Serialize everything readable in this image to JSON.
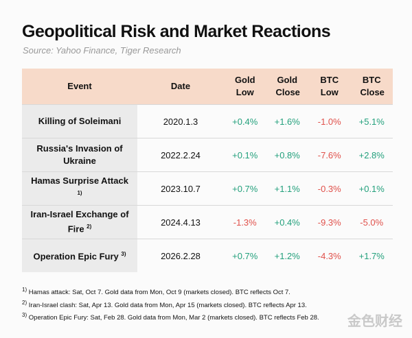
{
  "header": {
    "title": "Geopolitical Risk and Market Reactions",
    "source": "Source: Yahoo Finance, Tiger Research"
  },
  "table": {
    "columns": [
      "Event",
      "Date",
      "Gold Low",
      "Gold Close",
      "BTC Low",
      "BTC Close"
    ],
    "rows": [
      [
        {
          "text": "Killing of Soleimani"
        },
        "2020.1.3",
        "+0.4%",
        "+1.6%",
        "-1.0%",
        "+5.1%"
      ],
      [
        {
          "text": "Russia's Invasion of Ukraine"
        },
        "2022.2.24",
        "+0.1%",
        "+0.8%",
        "-7.6%",
        "+2.8%"
      ],
      [
        {
          "text": "Hamas Surprise Attack",
          "note": "1)"
        },
        "2023.10.7",
        "+0.7%",
        "+1.1%",
        "-0.3%",
        "+0.1%"
      ],
      [
        {
          "text": "Iran-Israel Exchange of Fire",
          "note": "2)"
        },
        "2024.4.13",
        "-1.3%",
        "+0.4%",
        "-9.3%",
        "-5.0%"
      ],
      [
        {
          "text": "Operation Epic Fury",
          "note": "3)"
        },
        "2026.2.28",
        "+0.7%",
        "+1.2%",
        "-4.3%",
        "+1.7%"
      ]
    ]
  },
  "footnotes": [
    {
      "mark": "1)",
      "text": "Hamas attack: Sat, Oct 7. Gold data from Mon, Oct 9 (markets closed). BTC reflects Oct 7."
    },
    {
      "mark": "2)",
      "text": "Iran-Israel clash: Sat, Apr 13. Gold data from Mon, Apr 15 (markets closed). BTC reflects Apr 13."
    },
    {
      "mark": "3)",
      "text": "Operation Epic Fury: Sat, Feb 28. Gold data from Mon, Mar 2 (markets closed). BTC reflects Feb 28."
    }
  ],
  "watermark": "金色财经"
}
